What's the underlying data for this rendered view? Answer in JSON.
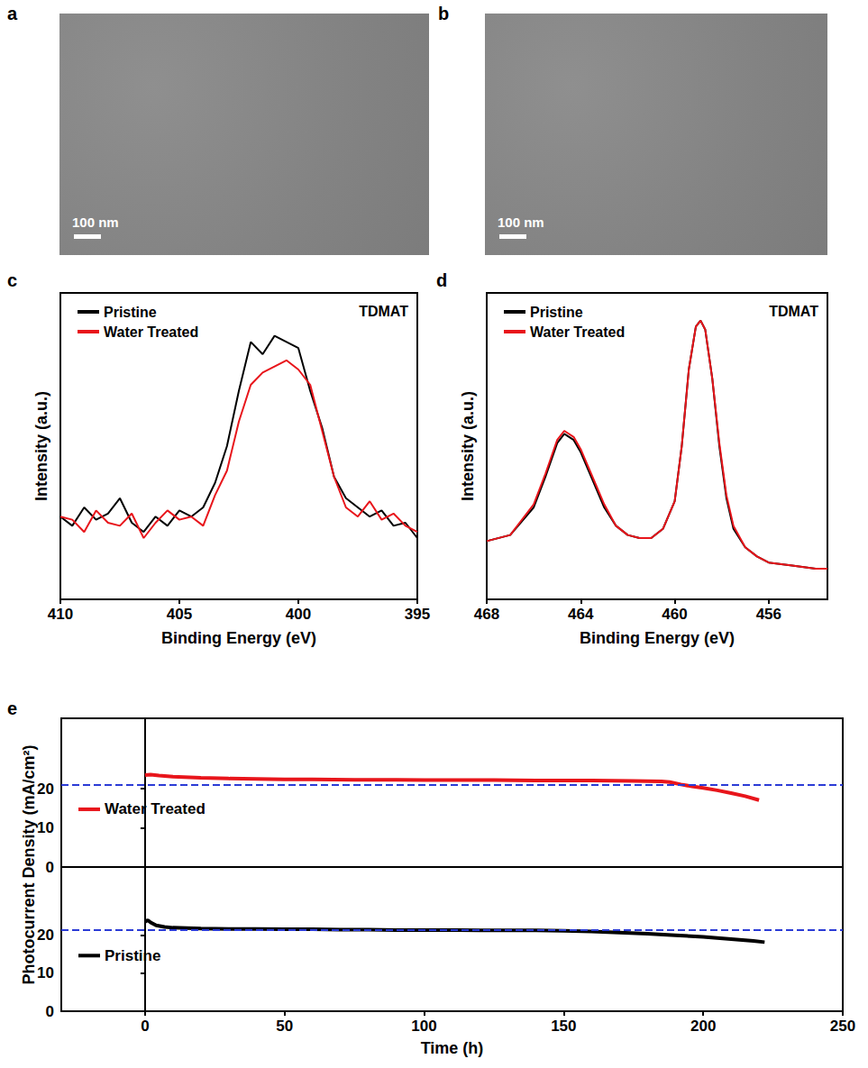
{
  "images": [
    {
      "panel": "a",
      "scale_bar": "100 nm"
    },
    {
      "panel": "b",
      "scale_bar": "100 nm"
    }
  ],
  "chart_data": [
    {
      "panel": "c",
      "type": "line",
      "x_label": "Binding Energy (eV)",
      "y_label": "Intensity (a.u.)",
      "annotation": "TDMAT",
      "xlim": [
        410,
        395
      ],
      "xticks": [
        410,
        405,
        400,
        395
      ],
      "ylim": [
        0,
        100
      ],
      "tick_labels": "x",
      "legend": "upper left",
      "x": [
        410,
        409.5,
        409,
        408.5,
        408,
        407.5,
        407,
        406.5,
        406,
        405.5,
        405,
        404.5,
        404,
        403.5,
        403,
        402.5,
        402,
        401.5,
        401,
        400.5,
        400,
        399.5,
        399,
        398.5,
        398,
        397.5,
        397,
        396.5,
        396,
        395.5,
        395
      ],
      "series": [
        {
          "name": "Pristine",
          "color": "#000000",
          "values": [
            27,
            24,
            30,
            26,
            28,
            33,
            25,
            22,
            27,
            24,
            29,
            27,
            30,
            38,
            50,
            68,
            84,
            80,
            86,
            84,
            82,
            68,
            56,
            40,
            33,
            30,
            27,
            29,
            24,
            25,
            20
          ]
        },
        {
          "name": "Water Treated",
          "color": "#e8151b",
          "values": [
            27,
            26,
            22,
            29,
            25,
            24,
            28,
            20,
            25,
            29,
            26,
            27,
            24,
            34,
            42,
            58,
            70,
            74,
            76,
            78,
            75,
            70,
            55,
            40,
            30,
            27,
            32,
            26,
            28,
            24,
            22
          ]
        }
      ]
    },
    {
      "panel": "d",
      "type": "line",
      "x_label": "Binding Energy (eV)",
      "y_label": "Intensity (a.u.)",
      "annotation": "TDMAT",
      "xlim": [
        468,
        453.5
      ],
      "xticks": [
        468,
        464,
        460,
        456
      ],
      "ylim": [
        0,
        100
      ],
      "tick_labels": "x",
      "legend": "upper left",
      "x": [
        468,
        467,
        466,
        465.5,
        465,
        464.7,
        464.3,
        464,
        463.5,
        463,
        462.5,
        462,
        461.5,
        461,
        460.5,
        460,
        459.7,
        459.4,
        459.1,
        458.9,
        458.7,
        458.4,
        458.1,
        457.8,
        457.5,
        457,
        456.5,
        456,
        455,
        454,
        453.5
      ],
      "series": [
        {
          "name": "Pristine",
          "color": "#000000",
          "values": [
            19,
            21,
            30,
            40,
            51,
            54,
            52,
            48,
            39,
            30,
            24,
            21,
            20,
            20,
            23,
            32,
            50,
            75,
            89,
            91,
            88,
            72,
            50,
            33,
            23,
            17,
            14,
            12,
            11,
            10,
            10
          ]
        },
        {
          "name": "Water Treated",
          "color": "#e8151b",
          "values": [
            19,
            21,
            31,
            41,
            52,
            55,
            53,
            49,
            40,
            31,
            24,
            21,
            20,
            20,
            23,
            32,
            50,
            75,
            89,
            91,
            88,
            72,
            51,
            34,
            24,
            17,
            14,
            12,
            11,
            10,
            10
          ]
        }
      ]
    },
    {
      "panel": "e",
      "type": "line",
      "x_label": "Time (h)",
      "y_label": "Photocurrent Density (mA/cm²)",
      "xlim": [
        -30,
        250
      ],
      "xticks": [
        0,
        50,
        100,
        150,
        200,
        250
      ],
      "subplots": [
        {
          "ylim": [
            0,
            38
          ],
          "yticks": [
            0,
            10,
            20
          ],
          "legend": "left",
          "reference_line": {
            "value": 21,
            "color": "#2b3bd6",
            "line_style": "dashed"
          },
          "series": [
            {
              "name": "Water Treated",
              "color": "#e8151b",
              "x": [
                0,
                2,
                5,
                10,
                20,
                30,
                40,
                50,
                60,
                75,
                90,
                100,
                110,
                125,
                140,
                150,
                160,
                175,
                185,
                188,
                192,
                196,
                200,
                205,
                210,
                215,
                220
              ],
              "values": [
                23.5,
                23.6,
                23.4,
                23.1,
                22.8,
                22.6,
                22.5,
                22.4,
                22.4,
                22.3,
                22.3,
                22.2,
                22.2,
                22.2,
                22.1,
                22.1,
                22.1,
                22.0,
                21.9,
                21.7,
                21.1,
                20.6,
                20.2,
                19.6,
                18.9,
                18.1,
                17.1
              ]
            }
          ]
        },
        {
          "ylim": [
            0,
            38
          ],
          "yticks": [
            0,
            10,
            20
          ],
          "legend": "left",
          "reference_line": {
            "value": 21.5,
            "color": "#2b3bd6",
            "line_style": "dashed"
          },
          "series": [
            {
              "name": "Pristine",
              "color": "#000000",
              "x": [
                0,
                1,
                2,
                4,
                7,
                10,
                20,
                30,
                40,
                50,
                60,
                70,
                80,
                90,
                100,
                110,
                120,
                130,
                140,
                150,
                160,
                170,
                180,
                190,
                200,
                210,
                218,
                222
              ],
              "values": [
                23.6,
                24.0,
                23.4,
                22.6,
                22.2,
                22.0,
                21.8,
                21.7,
                21.7,
                21.6,
                21.6,
                21.5,
                21.5,
                21.4,
                21.4,
                21.4,
                21.3,
                21.3,
                21.3,
                21.2,
                21.0,
                20.7,
                20.4,
                20.0,
                19.6,
                19.0,
                18.5,
                18.2
              ]
            }
          ]
        }
      ]
    }
  ]
}
